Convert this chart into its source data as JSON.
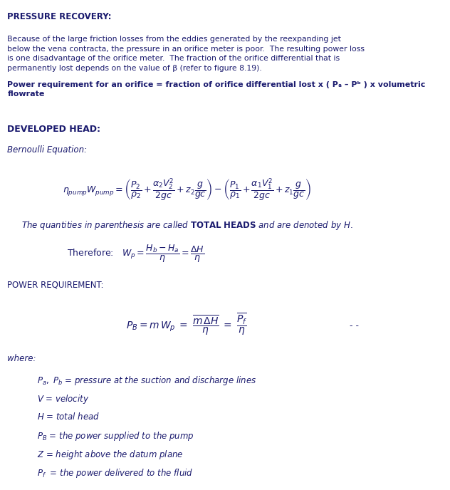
{
  "bg_color": "#ffffff",
  "text_color": "#1a1a6e",
  "title1": "PRESSURE RECOVERY:",
  "para1": "Because of the large friction losses from the eddies generated by the reexpanding jet\nbelow the vena contracta, the pressure in an orifice meter is poor.  The resulting power loss\nis one disadvantage of the orifice meter.  The fraction of the orifice differential that is\npermanently lost depends on the value of β (refer to figure 8.19).",
  "bold_line": "Power requirement for an orifice = fraction of orifice differential lost x ( Pₐ – Pᵇ ) x volumetric\nflowrate",
  "title2": "DEVELOPED HEAD:",
  "subtitle2": "Bernoulli Equation:",
  "bernoulli_eq": "\\eta_{pump}W_{pump} = \\left(\\frac{P_2}{\\rho_2}+\\frac{\\alpha_2 V_2^2}{2gc}+z_2\\frac{g}{gc}\\right)-\\left(\\frac{P_1}{\\rho_1}+\\frac{\\alpha_1 V_1^2}{2gc}+z_1\\frac{g}{gc}\\right)",
  "total_heads_line": "The quantities in parenthesis are called TOTAL HEADS and are denoted by H.",
  "therefore_eq": "W_p = \\dfrac{H_b - H_a}{\\eta} = \\dfrac{\\Delta H}{\\eta}",
  "title3": "POWER REQUIREMENT:",
  "power_eq": "P_B = m\\,W_p \\;=\\; \\dfrac{\\underline{m\\,\\Delta H}}{\\eta} \\;=\\; \\dfrac{\\underline{P_f}}{\\eta}",
  "where_label": "where:",
  "where_items": [
    "Pₐ, Pᵇ = pressure at the suction and discharge lines",
    "V = velocity",
    "H = total head",
    "PB = the power supplied to the pump",
    "Z = height above the datum plane",
    "Pᶠ  = the power delivered to the fluid"
  ],
  "watermark_color": "#c8c8e8"
}
